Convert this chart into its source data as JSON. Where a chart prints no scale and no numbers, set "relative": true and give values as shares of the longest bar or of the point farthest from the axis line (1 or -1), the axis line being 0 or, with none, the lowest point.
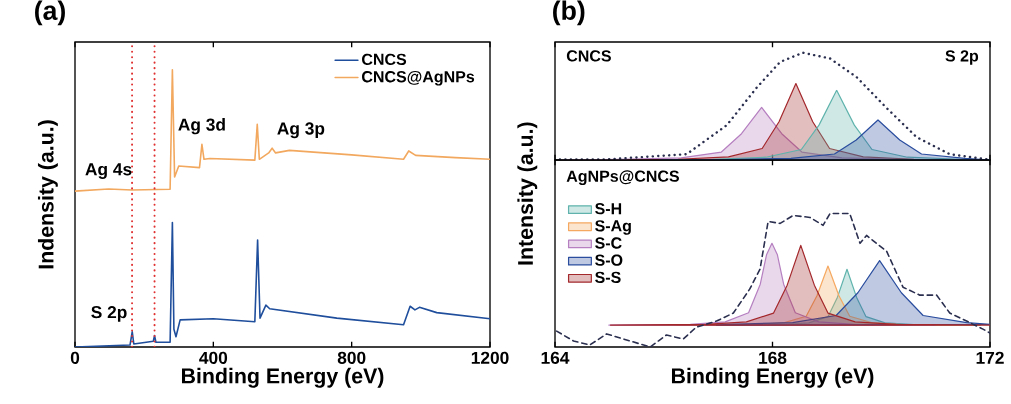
{
  "chart_data": [
    {
      "type": "line",
      "title": "(a)",
      "xlabel": "Binding Energy (eV)",
      "ylabel": "Indensity (a.u.)",
      "relative": true,
      "xlim": [
        0,
        1200
      ],
      "xticks": [
        0,
        400,
        800,
        1200
      ],
      "legend": "top right",
      "series": [
        {
          "name": "CNCS",
          "color": "#1f4e9c",
          "x": [
            0,
            159,
            165.5,
            170,
            226.5,
            230,
            234,
            275,
            281.6,
            286,
            292,
            304,
            400,
            520,
            528,
            535,
            552,
            563,
            757,
            950,
            969,
            983,
            996,
            1046,
            1200
          ],
          "values": [
            0,
            0.007,
            0.055,
            0.011,
            0.021,
            0.041,
            0.017,
            0.017,
            0.449,
            0.064,
            0.037,
            0.098,
            0.102,
            0.091,
            0.386,
            0.104,
            0.151,
            0.138,
            0.104,
            0.08,
            0.147,
            0.134,
            0.143,
            0.124,
            0.102
          ]
        },
        {
          "name": "CNCS@AgNPs",
          "color": "#f2a85e",
          "x": [
            0,
            97,
            165,
            275,
            281.6,
            288,
            300,
            360,
            367,
            373,
            390,
            520,
            527,
            533,
            560,
            570,
            580,
            620,
            800,
            950,
            965,
            985,
            1100,
            1200
          ],
          "values": [
            0.562,
            0.57,
            0.566,
            0.569,
            1,
            0.613,
            0.653,
            0.647,
            0.731,
            0.677,
            0.68,
            0.674,
            0.803,
            0.677,
            0.7,
            0.717,
            0.7,
            0.709,
            0.693,
            0.677,
            0.707,
            0.691,
            0.683,
            0.677
          ]
        }
      ],
      "ref_lines": [
        {
          "axis": "x",
          "value": 165,
          "color": "#e03030",
          "line_style": "dotted"
        },
        {
          "axis": "x",
          "value": 230,
          "color": "#e03030",
          "line_style": "dotted"
        }
      ],
      "annotations": [
        {
          "text": "Ag 4s",
          "x": 97,
          "y": 0.57
        },
        {
          "text": "Ag 3d",
          "x": 367,
          "y": 0.731
        },
        {
          "text": "Ag 3p",
          "x": 570,
          "y": 0.717
        },
        {
          "text": "S 2p",
          "x": 165,
          "y": 0.055
        }
      ]
    },
    {
      "type": "area",
      "title": "(b)",
      "relative": true,
      "xlim": [
        164,
        172
      ],
      "xticks": [
        164,
        168,
        172
      ],
      "tick_labels": false,
      "series": [
        {
          "color": "#b57fc0",
          "x": [
            164.1,
            165.21,
            166.32,
            167.06,
            167.43,
            167.8,
            168.17,
            168.54,
            169.28,
            170.39,
            171.5
          ],
          "values": [
            0,
            0.005,
            0.02,
            0.074,
            0.245,
            0.49,
            0.245,
            0.074,
            0.02,
            0.005,
            0
          ]
        },
        {
          "color": "#a3282c",
          "x": [
            165.33,
            166.26,
            167.19,
            167.81,
            168.12,
            168.43,
            168.74,
            169.05,
            169.67,
            170.6,
            171.53
          ],
          "values": [
            0,
            0.007,
            0.029,
            0.107,
            0.357,
            0.713,
            0.357,
            0.107,
            0.029,
            0.007,
            0
          ]
        },
        {
          "color": "#5fb3ac",
          "x": [
            165.93,
            166.905,
            167.88,
            168.53,
            168.855,
            169.18,
            169.505,
            169.83,
            170.48,
            171.455,
            172.0
          ],
          "values": [
            0,
            0.007,
            0.026,
            0.098,
            0.325,
            0.65,
            0.325,
            0.098,
            0.026,
            0.007,
            0
          ]
        },
        {
          "color": "#2a4d9e",
          "x": [
            165.94,
            167.14,
            168.34,
            169.14,
            169.54,
            169.94,
            170.34,
            170.74,
            171.54,
            172.0
          ],
          "values": [
            0,
            0.004,
            0.015,
            0.056,
            0.187,
            0.373,
            0.187,
            0.056,
            0.015,
            0
          ]
        },
        {
          "type": "line",
          "line_style": "dotted",
          "color": "#2b2f4f",
          "x": [
            164.09,
            164.95,
            166.42,
            167.16,
            167.71,
            168.14,
            168.56,
            169.06,
            169.55,
            170.1,
            170.65,
            171.26,
            171.94
          ],
          "values": [
            0.006,
            0.006,
            0.054,
            0.325,
            0.675,
            0.914,
            1,
            0.946,
            0.771,
            0.484,
            0.213,
            0.054,
            0.006
          ]
        }
      ],
      "annotations": [
        "CNCS",
        "S 2p"
      ]
    },
    {
      "type": "area",
      "xlabel": "Binding Energy (eV)",
      "ylabel": "Intensity (a.u.)",
      "relative": true,
      "xlim": [
        164,
        172
      ],
      "xticks": [
        164,
        168,
        172
      ],
      "legend": "top left",
      "series": [
        {
          "name": "S-H",
          "color": "#5fb3ac",
          "x": [
            166.92,
            168.145,
            168.67,
            169.02,
            169.195,
            169.37,
            169.545,
            169.72,
            170.07,
            170.595,
            171.82
          ],
          "values": [
            0.164,
            0.168,
            0.181,
            0.227,
            0.373,
            0.582,
            0.373,
            0.227,
            0.181,
            0.168,
            0.164
          ]
        },
        {
          "name": "S-Ag",
          "color": "#f5a860",
          "x": [
            166.22,
            167.62,
            168.22,
            168.62,
            168.82,
            169.02,
            169.22,
            169.42,
            169.82,
            170.42,
            171.82
          ],
          "values": [
            0.164,
            0.168,
            0.182,
            0.23,
            0.385,
            0.606,
            0.385,
            0.23,
            0.182,
            0.168,
            0.164
          ]
        },
        {
          "name": "S-C",
          "color": "#b57fc0",
          "x": [
            164.99,
            166.49,
            167.13,
            167.56,
            167.775,
            167.89,
            167.99,
            168.09,
            168.205,
            168.42,
            168.85,
            169.49,
            170.99
          ],
          "values": [
            0.164,
            0.17,
            0.188,
            0.256,
            0.47,
            0.69,
            0.776,
            0.69,
            0.47,
            0.256,
            0.188,
            0.17,
            0.164
          ]
        },
        {
          "name": "S-O",
          "color": "#2a4d9e",
          "x": [
            166.97,
            167.17,
            168.37,
            169.17,
            169.57,
            169.97,
            170.37,
            170.77,
            171.57,
            172.0
          ],
          "values": [
            0.164,
            0.169,
            0.183,
            0.236,
            0.406,
            0.647,
            0.406,
            0.236,
            0.183,
            0.169
          ]
        },
        {
          "name": "S-S",
          "color": "#a3282c",
          "x": [
            165.02,
            166.77,
            167.52,
            168.02,
            168.27,
            168.52,
            168.77,
            169.02,
            169.52,
            170.27,
            172.0
          ],
          "values": [
            0.164,
            0.17,
            0.188,
            0.254,
            0.463,
            0.761,
            0.463,
            0.254,
            0.188,
            0.17,
            0.164
          ]
        },
        {
          "type": "line",
          "line_style": "dashed",
          "color": "#2b2f4f",
          "x": [
            164.03,
            164.34,
            164.64,
            164.95,
            165.26,
            165.75,
            166.05,
            166.36,
            166.6,
            166.97,
            167.28,
            167.58,
            167.77,
            167.92,
            168.14,
            168.38,
            168.69,
            168.93,
            169.06,
            169.42,
            169.61,
            169.73,
            170.1,
            170.4,
            170.71,
            171.02,
            171.26,
            171.57,
            171.87,
            172.0
          ],
          "values": [
            0.119,
            0.045,
            0.015,
            0.098,
            0.06,
            0,
            0.09,
            0.06,
            0.149,
            0.194,
            0.254,
            0.433,
            0.582,
            0.94,
            0.925,
            0.985,
            0.97,
            0.911,
            1,
            1,
            0.776,
            0.835,
            0.716,
            0.448,
            0.388,
            0.388,
            0.254,
            0.194,
            0.134,
            0.104
          ]
        }
      ],
      "annotations": [
        "AgNPs@CNCS"
      ]
    }
  ]
}
